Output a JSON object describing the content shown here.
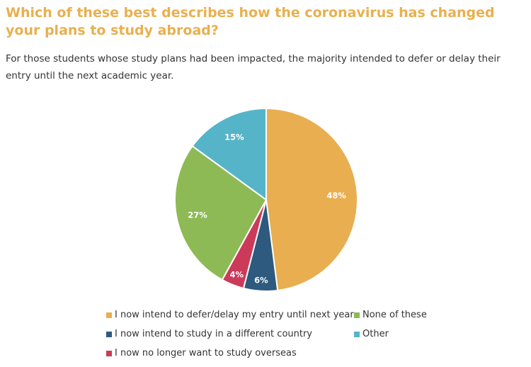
{
  "title": "Which of these best describes how the coronavirus has changed your plans to study abroad?",
  "subtitle": "For those students whose study plans had been impacted, the majority intended to defer or delay their entry until the next academic year.",
  "chart_data": {
    "type": "pie",
    "title": "",
    "slices": [
      {
        "label": "I now intend to defer/delay my entry until next year",
        "value": 48,
        "display": "48%",
        "color": "#E8AE50"
      },
      {
        "label": "I now intend to study in a different country",
        "value": 6,
        "display": "6%",
        "color": "#2D5A7E"
      },
      {
        "label": "I now no longer want to study overseas",
        "value": 4,
        "display": "4%",
        "color": "#CC3A5A"
      },
      {
        "label": "None of these",
        "value": 27,
        "display": "27%",
        "color": "#8DBA55"
      },
      {
        "label": "Other",
        "value": 15,
        "display": "15%",
        "color": "#56B4C8"
      }
    ],
    "legend_placement": "bottom",
    "start_angle": "12 o'clock",
    "direction": "clockwise"
  },
  "legend": {
    "items": [
      {
        "label": "I now intend to defer/delay my entry until next year",
        "color": "#E8AE50"
      },
      {
        "label": "None of these",
        "color": "#8DBA55"
      },
      {
        "label": "I now intend to study in a different country",
        "color": "#2D5A7E"
      },
      {
        "label": "Other",
        "color": "#56B4C8"
      },
      {
        "label": "I now no longer want to study overseas",
        "color": "#CC3A5A"
      }
    ]
  }
}
